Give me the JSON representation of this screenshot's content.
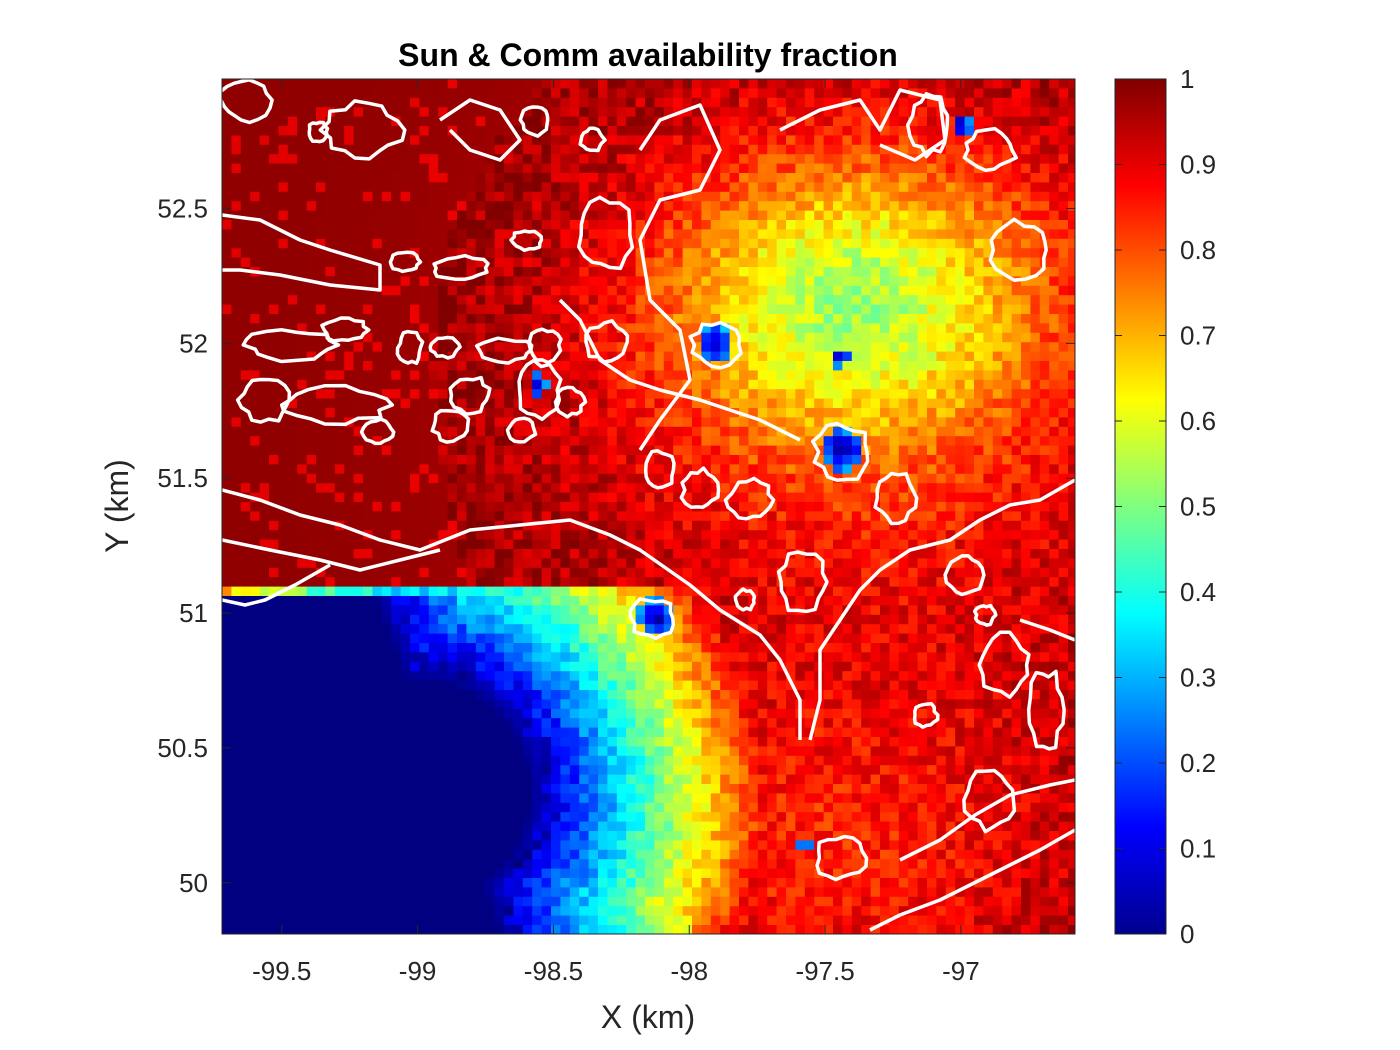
{
  "chart_data": {
    "type": "heatmap",
    "title": "Sun & Comm availability fraction",
    "xlabel": "X (km)",
    "ylabel": "Y (km)",
    "xlim": [
      -99.72,
      -96.58
    ],
    "ylim": [
      49.81,
      52.98
    ],
    "x_ticks": [
      -99.5,
      -99,
      -98.5,
      -98,
      -97.5,
      -97
    ],
    "x_tick_labels": [
      "-99.5",
      "-99",
      "-98.5",
      "-98",
      "-97.5",
      "-97"
    ],
    "y_ticks": [
      50,
      50.5,
      51,
      51.5,
      52,
      52.5
    ],
    "y_tick_labels": [
      "50",
      "50.5",
      "51",
      "51.5",
      "52",
      "52.5"
    ],
    "colorbar": {
      "colormap": "jet",
      "range": [
        0,
        1
      ],
      "ticks": [
        0,
        0.1,
        0.2,
        0.3,
        0.4,
        0.5,
        0.6,
        0.7,
        0.8,
        0.9,
        1
      ],
      "tick_labels": [
        "0",
        "0.1",
        "0.2",
        "0.3",
        "0.4",
        "0.5",
        "0.6",
        "0.7",
        "0.8",
        "0.9",
        "1"
      ]
    },
    "grid": false,
    "contour_color": "#ffffff",
    "features": [
      {
        "description": "low-availability region (0)",
        "x": -99.05,
        "y": 50.45,
        "rx": 0.7,
        "ry": 0.55,
        "value": 0.0
      },
      {
        "description": "shadow pit",
        "x": -97.38,
        "y": 51.62,
        "value": 0.0
      },
      {
        "description": "shadow pit",
        "x": -97.88,
        "y": 52.0,
        "value": 0.05
      },
      {
        "description": "shadow pit",
        "x": -98.15,
        "y": 50.98,
        "value": 0.0
      },
      {
        "description": "shadow pit",
        "x": -96.98,
        "y": 52.83,
        "value": 0.05
      },
      {
        "description": "shadow pit",
        "x": -97.47,
        "y": 50.15,
        "value": 0.05
      }
    ]
  }
}
